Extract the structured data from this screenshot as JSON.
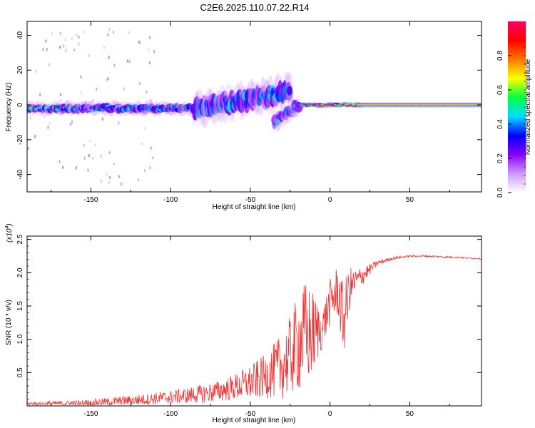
{
  "figure": {
    "title": "C2E6.2025.110.07.22.R14"
  },
  "chart_data": [
    {
      "type": "heatmap",
      "xlabel": "Height of straight line (km)",
      "ylabel": "Frequency (Hz)",
      "xlim": [
        -190,
        95
      ],
      "ylim": [
        -50,
        48
      ],
      "xticks": [
        -150,
        -100,
        -50,
        0,
        50
      ],
      "yticks": [
        -40,
        -20,
        0,
        20,
        40
      ],
      "colorbar": {
        "label": "Normalized spectral amplitude",
        "range": [
          0.0,
          1.0
        ],
        "ticks": [
          0.0,
          0.2,
          0.4,
          0.6,
          0.8
        ],
        "tick_labels": [
          "0.0",
          "0.2",
          "0.4",
          "0.6",
          "0.8"
        ],
        "colors": [
          "#ffffff",
          "#cc99ff",
          "#8800ff",
          "#0000ff",
          "#00ddff",
          "#00ff44",
          "#ffff00",
          "#ff7700",
          "#ff0000",
          "#ff0066"
        ]
      },
      "features": [
        {
          "x": [
            -190,
            -85
          ],
          "center_hz": -2,
          "spread_hz": 4,
          "amplitude": 0.45
        },
        {
          "x": [
            -85,
            -25
          ],
          "center_hz_start": -3,
          "center_hz_end": 8,
          "spread_hz": 10,
          "amplitude": 0.4
        },
        {
          "x": [
            -35,
            -20
          ],
          "center_hz_start": -10,
          "center_hz_end": 0,
          "spread_hz": 6,
          "amplitude": 0.35
        },
        {
          "x": [
            -18,
            18
          ],
          "center_hz": 0,
          "spread_hz": 1.5,
          "amplitude": 0.85
        },
        {
          "x": [
            18,
            95
          ],
          "center_hz": 0,
          "spread_hz": 1,
          "amplitude": 0.7
        }
      ]
    },
    {
      "type": "line",
      "xlabel": "Height of straight line (km)",
      "ylabel": "SNR (10 * v/v)",
      "y_multiplier_label": "(x10",
      "y_multiplier_exp": "4",
      "y_multiplier_close": ")",
      "xlim": [
        -190,
        95
      ],
      "ylim": [
        0,
        2.55
      ],
      "xticks": [
        -150,
        -100,
        -50,
        0,
        50
      ],
      "yticks": [
        0.5,
        1.0,
        1.5,
        2.0,
        2.5
      ],
      "ytick_labels": [
        "0.5",
        "1.0",
        "1.5",
        "2.0",
        "2.5"
      ],
      "line_color": "#ee3333",
      "series": [
        {
          "envelope": {
            "x": [
              -190,
              -160,
              -140,
              -120,
              -100,
              -80,
              -70,
              -60,
              -50,
              -40,
              -30,
              -25,
              -20,
              -15,
              -10,
              -5,
              0,
              5,
              8,
              10,
              12,
              15,
              20,
              25,
              30,
              40,
              50,
              60,
              80,
              95
            ],
            "mean": [
              0.03,
              0.04,
              0.06,
              0.09,
              0.13,
              0.18,
              0.22,
              0.28,
              0.35,
              0.45,
              0.6,
              0.75,
              0.95,
              1.05,
              1.1,
              1.15,
              1.55,
              1.75,
              1.3,
              1.4,
              1.75,
              1.85,
              1.95,
              2.05,
              2.15,
              2.22,
              2.25,
              2.25,
              2.23,
              2.21
            ],
            "noise": [
              0.03,
              0.04,
              0.06,
              0.08,
              0.1,
              0.14,
              0.16,
              0.2,
              0.26,
              0.34,
              0.5,
              0.6,
              0.75,
              0.85,
              0.6,
              0.3,
              0.35,
              0.4,
              0.55,
              0.55,
              0.35,
              0.2,
              0.15,
              0.08,
              0.04,
              0.02,
              0.015,
              0.015,
              0.012,
              0.01
            ]
          }
        }
      ]
    }
  ]
}
